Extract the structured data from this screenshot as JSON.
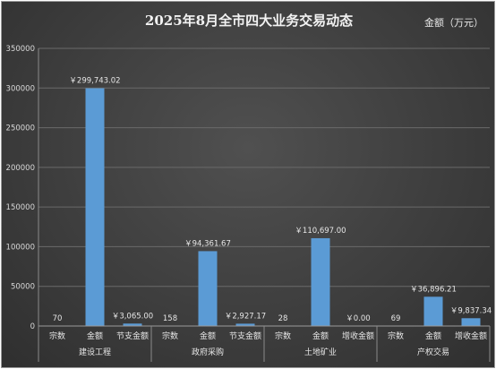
{
  "chart_data": {
    "type": "bar",
    "title": "2025年8月全市四大业务交易动态",
    "unit_label": "金额（万元）",
    "ylim": [
      0,
      350000
    ],
    "yticks": [
      "0",
      "50000",
      "100000",
      "150000",
      "200000",
      "250000",
      "300000",
      "350000"
    ],
    "ytick_values": [
      0,
      50000,
      100000,
      150000,
      200000,
      250000,
      300000,
      350000
    ],
    "grid": true,
    "bar_color": "#5b9bd5",
    "groups": [
      {
        "name": "建设工程",
        "categories": [
          "宗数",
          "金额",
          "节支金额"
        ],
        "values": [
          70,
          299743.02,
          3065.0
        ],
        "labels": [
          "70",
          "￥299,743.02",
          "￥3,065.00"
        ]
      },
      {
        "name": "政府采购",
        "categories": [
          "宗数",
          "金额",
          "节支金额"
        ],
        "values": [
          158,
          94361.67,
          2927.17
        ],
        "labels": [
          "158",
          "￥94,361.67",
          "￥2,927.17"
        ]
      },
      {
        "name": "土地矿业",
        "categories": [
          "宗数",
          "金额",
          "增收金额"
        ],
        "values": [
          28,
          110697.0,
          0.0
        ],
        "labels": [
          "28",
          "￥110,697.00",
          "￥0.00"
        ]
      },
      {
        "name": "产权交易",
        "categories": [
          "宗数",
          "金额",
          "增收金额"
        ],
        "values": [
          69,
          36896.21,
          9837.34
        ],
        "labels": [
          "69",
          "￥36,896.21",
          "￥9,837.34"
        ]
      }
    ]
  }
}
